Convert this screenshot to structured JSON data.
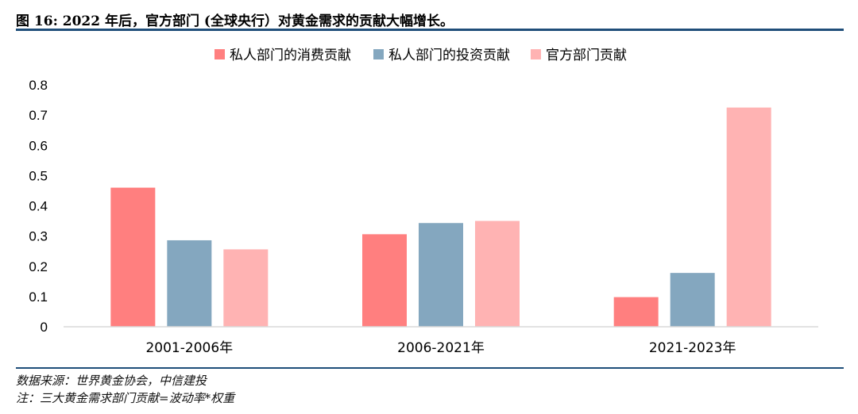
{
  "title": "图 16: 2022 年后，官方部门 (全球央行）对黄金需求的贡献大幅增长。",
  "source": "数据来源：世界黄金协会，中信建投",
  "note": "注：三大黄金需求部门贡献=波动率*权重",
  "chart_data": {
    "type": "bar",
    "categories": [
      "2001-2006年",
      "2006-2021年",
      "2021-2023年"
    ],
    "series": [
      {
        "name": "私人部门的消费贡献",
        "color": "#ff7f7f",
        "values": [
          0.46,
          0.306,
          0.098
        ]
      },
      {
        "name": "私人部门的投资贡献",
        "color": "#84a7bf",
        "values": [
          0.286,
          0.343,
          0.178
        ]
      },
      {
        "name": "官方部门贡献",
        "color": "#ffb3b3",
        "values": [
          0.256,
          0.35,
          0.725
        ]
      }
    ],
    "ylim": [
      0,
      0.8
    ],
    "yticks": [
      "0",
      "0.1",
      "0.2",
      "0.3",
      "0.4",
      "0.5",
      "0.6",
      "0.7",
      "0.8"
    ],
    "legend_position": "top-center",
    "grid": false
  }
}
